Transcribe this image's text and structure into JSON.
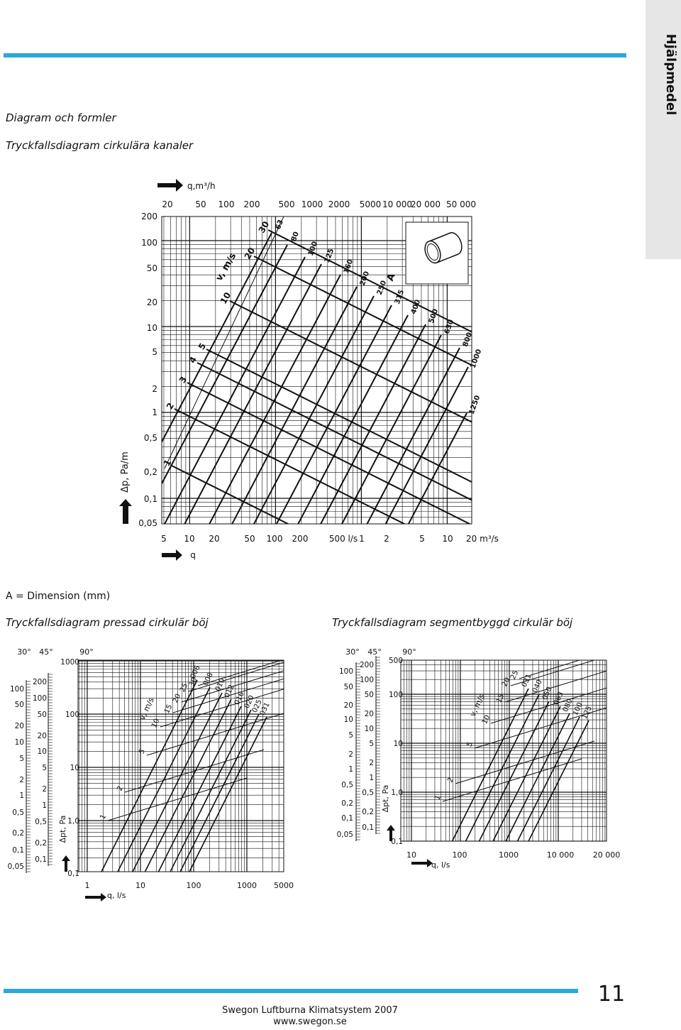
{
  "side_tab": "Hjälpmedel",
  "header": {
    "section": "Diagram och formler",
    "title": "Tryckfallsdiagram cirkulära kanaler"
  },
  "diagram1": {
    "top_axis_label": "q,m³/h",
    "top_ticks": [
      "20",
      "50",
      "100",
      "200",
      "500",
      "1000",
      "2000",
      "5000",
      "10 000",
      "20 000",
      "50 000"
    ],
    "left_ticks": [
      "200",
      "100",
      "50",
      "20",
      "10",
      "5",
      "2",
      "1",
      "0,5",
      "0,2",
      "0,1",
      "0,05"
    ],
    "y_label": "Δp,  Pa/m",
    "bottom_ticks": [
      "5",
      "10",
      "20",
      "50",
      "100",
      "200",
      "500 l/s",
      "1",
      "2",
      "5",
      "10",
      "20 m³/s"
    ],
    "x_label": "q",
    "velocity_label": "v, m/s",
    "velocity_ticks": [
      "1",
      "2",
      "3",
      "4",
      "5",
      "10",
      "20",
      "30"
    ],
    "dimension_label": "A",
    "dimensions": [
      "63",
      "80",
      "100",
      "125",
      "160",
      "200",
      "250",
      "315",
      "400",
      "500",
      "630",
      "800",
      "1000",
      "1250"
    ]
  },
  "note": "A = Dimension (mm)",
  "diagram2": {
    "title": "Tryckfallsdiagram pressad cirkulär böj",
    "angles": [
      "30°",
      "45°",
      "90°"
    ],
    "col30": [
      "100",
      "50",
      "20",
      "10",
      "5",
      "2",
      "1",
      "0,5",
      "0,2",
      "0,1",
      "0,05"
    ],
    "col45": [
      "200",
      "100",
      "50",
      "20",
      "10",
      "5",
      "2",
      "1",
      "0,5",
      "0,2",
      "0,1"
    ],
    "col90": [
      "1000",
      "100",
      "10",
      "1,0",
      "0,1"
    ],
    "y_label": "Δpt, Pa",
    "x_ticks": [
      "1",
      "10",
      "100",
      "1000",
      "5000"
    ],
    "x_label": "q, l/s",
    "velocity_label": "v, m/s",
    "velocity_ticks": [
      "1",
      "2",
      "5",
      "10",
      "15",
      "20",
      "25",
      "30"
    ],
    "dimensions": [
      "006",
      "008",
      "010",
      "012",
      "016",
      "020",
      "025",
      "031"
    ]
  },
  "diagram3": {
    "title": "Tryckfallsdiagram segmentbyggd cirkulär böj",
    "angles": [
      "30°",
      "45°",
      "90°"
    ],
    "col30": [
      "100",
      "50",
      "20",
      "10",
      "5",
      "2",
      "1",
      "0,5",
      "0,2",
      "0,1",
      "0,05"
    ],
    "col45": [
      "200",
      "100",
      "50",
      "20",
      "10",
      "5",
      "2",
      "1",
      "0,5",
      "0,2",
      "0,1"
    ],
    "col90": [
      "500",
      "100",
      "10",
      "1,0",
      "0,1"
    ],
    "y_label": "Δpt, Pa",
    "x_ticks": [
      "10",
      "100",
      "1000",
      "10 000",
      "20 000"
    ],
    "x_label": "q, l/s",
    "velocity_label": "v, m/s",
    "velocity_ticks": [
      "1",
      "2",
      "5",
      "10",
      "15",
      "20",
      "25"
    ],
    "dimensions": [
      "031",
      "040",
      "050",
      "063",
      "080",
      "100",
      "125"
    ]
  },
  "footer": {
    "page": "11",
    "company": "Swegon Luftburna Klimatsystem 2007",
    "url": "www.swegon.se"
  }
}
